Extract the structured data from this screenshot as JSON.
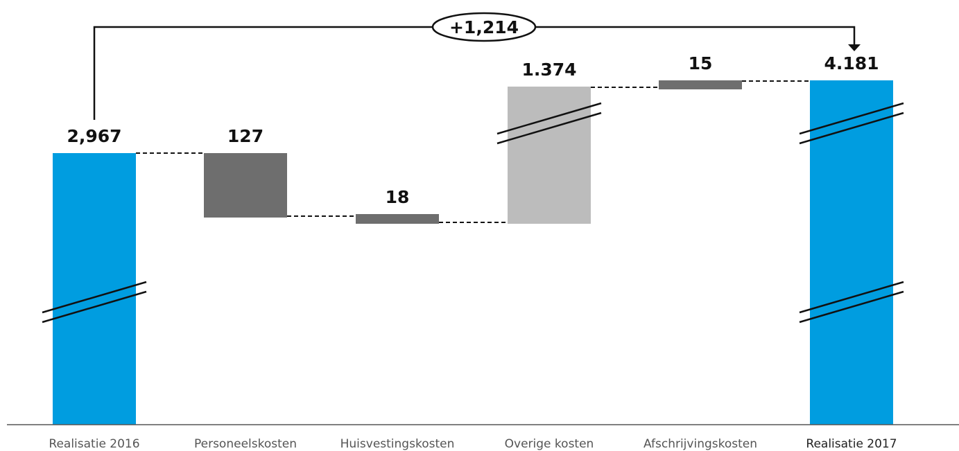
{
  "chart_data": {
    "type": "bar",
    "subtype": "waterfall",
    "categories": [
      "Realisatie 2016",
      "Personeelskosten",
      "Huisvestingskosten",
      "Overige kosten",
      "Afschrijvingskosten",
      "Realisatie 2017"
    ],
    "value_labels": [
      "2,967",
      "127",
      "18",
      "1.374",
      "15",
      "4.181"
    ],
    "values": [
      2967,
      127,
      18,
      1374,
      15,
      4181
    ],
    "bar_kind": [
      "total",
      "increase",
      "increase",
      "increase",
      "increase",
      "total"
    ],
    "total_change_label": "+1,214",
    "axis_break": true,
    "colors": {
      "total": "#009de0",
      "increase_dark": "#6e6e6e",
      "increase_light": "#bcbcbc",
      "connector": "#111111",
      "axis": "#555555"
    }
  }
}
